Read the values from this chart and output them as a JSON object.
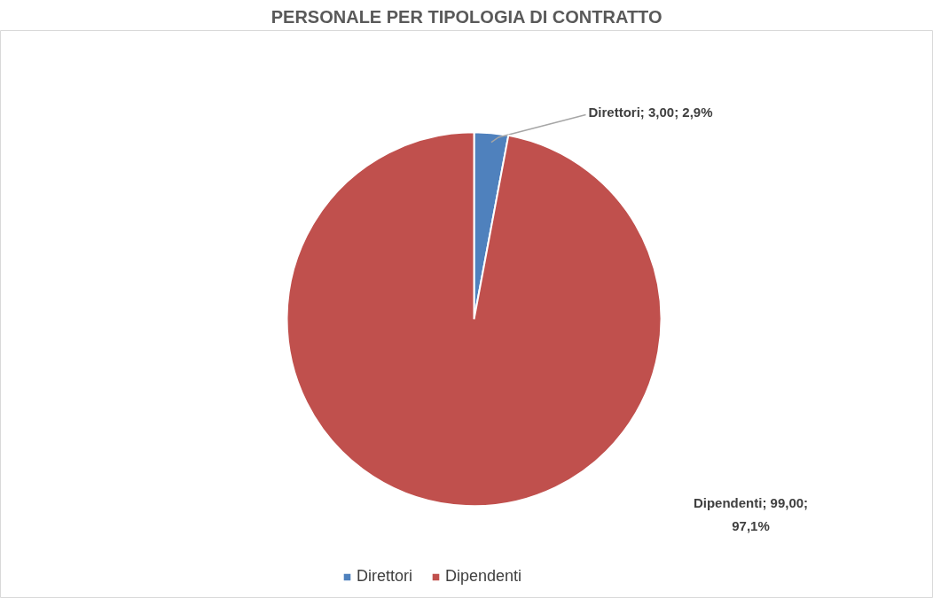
{
  "chart_data": {
    "type": "pie",
    "title": "PERSONALE PER TIPOLOGIA DI CONTRATTO",
    "categories": [
      "Direttori",
      "Dipendenti"
    ],
    "values": [
      3.0,
      99.0
    ],
    "colors": [
      "#4f81bd",
      "#c0504d"
    ],
    "value_labels": [
      "Direttori; 3,00; 2,9%",
      "Dipendenti; 99,00; 97,1%"
    ],
    "legend": "bottom"
  }
}
